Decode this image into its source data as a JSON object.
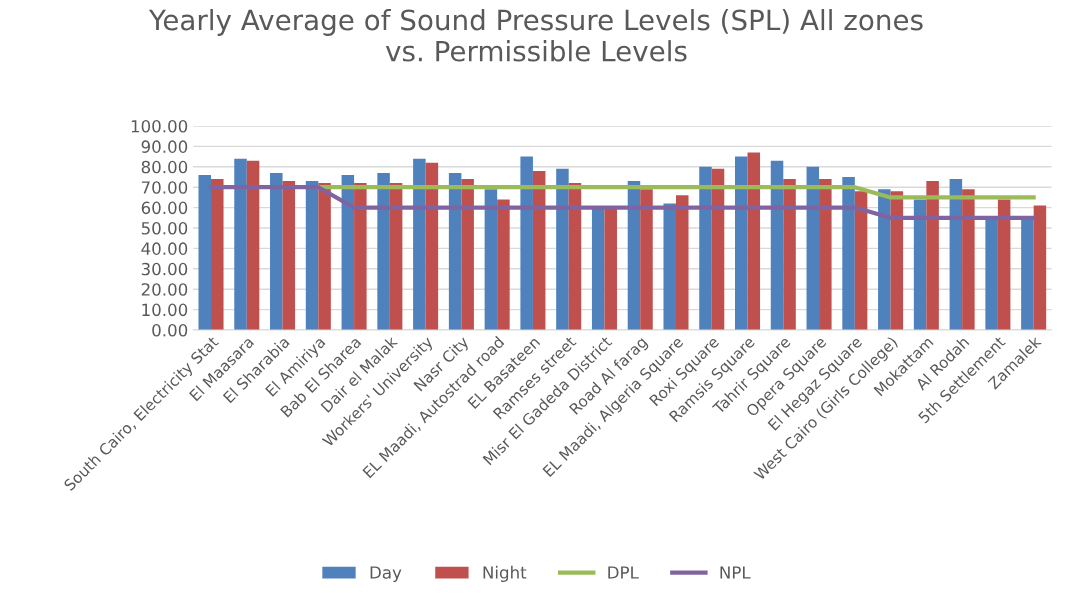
{
  "chart_data": {
    "type": "bar",
    "title": "Yearly Average of Sound Pressure Levels (SPL) All zones\nvs. Permissible Levels",
    "categories": [
      "South Cairo, Electricity Stat",
      "El Maasara",
      "El Sharabia",
      "El Amiriya",
      "Bab El Sharea",
      "Dair el Malak",
      "Workers' University",
      "Nasr City",
      "EL Maadi, Autostrad road",
      "EL Basateen",
      "Ramses street",
      "Misr El Gadeda District",
      "Road Al farag",
      "EL Maadi, Algeria Square",
      "Roxi Square",
      "Ramsis Square",
      "Tahrir Square",
      "Opera Square",
      "El Hegaz Square",
      "West Cairo (Girls College)",
      "Mokattam",
      "Al Rodah",
      "5th Settlement",
      "Zamalek"
    ],
    "series": [
      {
        "name": "Day",
        "color": "#4f81bd",
        "values": [
          76,
          84,
          77,
          73,
          76,
          77,
          84,
          77,
          69,
          85,
          79,
          60,
          73,
          62,
          80,
          85,
          83,
          80,
          75,
          69,
          64,
          74,
          55,
          55
        ]
      },
      {
        "name": "Night",
        "color": "#c0504d",
        "values": [
          74,
          83,
          73,
          72,
          72,
          72,
          82,
          74,
          64,
          78,
          72,
          60,
          69,
          66,
          79,
          87,
          74,
          74,
          68,
          68,
          73,
          69,
          64,
          61
        ]
      },
      {
        "name": "DPL",
        "type": "line",
        "color": "#9bbb59",
        "values": [
          null,
          null,
          null,
          70,
          70,
          70,
          70,
          70,
          70,
          70,
          70,
          70,
          70,
          70,
          70,
          70,
          70,
          70,
          70,
          65,
          65,
          65,
          65,
          65
        ]
      },
      {
        "name": "NPL",
        "type": "line",
        "color": "#8064a2",
        "values": [
          70,
          70,
          70,
          70,
          60,
          60,
          60,
          60,
          60,
          60,
          60,
          60,
          60,
          60,
          60,
          60,
          60,
          60,
          60,
          55,
          55,
          55,
          55,
          55
        ]
      }
    ],
    "ylim": [
      0,
      100
    ],
    "yticks": [
      {
        "value": 0,
        "label": "0.00"
      },
      {
        "value": 10,
        "label": "10.00"
      },
      {
        "value": 20,
        "label": "20.00"
      },
      {
        "value": 30,
        "label": "30.00"
      },
      {
        "value": 40,
        "label": "40.00"
      },
      {
        "value": 50,
        "label": "50.00"
      },
      {
        "value": 60,
        "label": "60.00"
      },
      {
        "value": 70,
        "label": "70.00"
      },
      {
        "value": 80,
        "label": "80.00"
      },
      {
        "value": 90,
        "label": "90.00"
      },
      {
        "value": 100,
        "label": "100.00"
      }
    ],
    "grid": "y",
    "legend": "bottom",
    "marker": "none",
    "line_style": "solid"
  }
}
